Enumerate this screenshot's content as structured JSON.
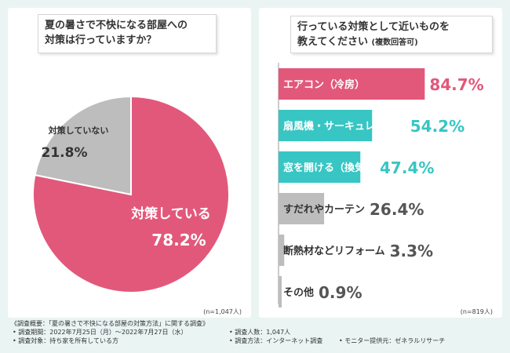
{
  "colors": {
    "background": "#e9f4f3",
    "pink": "#e2587a",
    "teal": "#37c6c3",
    "gray": "#bdbdbd",
    "white": "#ffffff"
  },
  "left_panel": {
    "question_line1": "夏の暑さで不快になる部屋への",
    "question_line2": "対策は行っていますか？",
    "n_label": "(n=1,047人)"
  },
  "right_panel": {
    "question_line1": "行っている対策として近いものを",
    "question_line2": "教えてください",
    "question_note": "(複数回答可)",
    "n_label": "(n=819人)"
  },
  "footer": {
    "survey_overview": "《調査概要：「夏の暑さで不快になる部屋の対策方法」に関する調査》",
    "survey_period": "• 調査期間：2022年7月25日（月）～2022年7月27日（水）",
    "survey_count": "• 調査人数：1,047人",
    "survey_target": "• 調査対象：持ち家を所有している方",
    "survey_method": "• 調査方法：インターネット調査",
    "survey_provider": "• モニター提供元：ゼネラルリサーチ"
  },
  "chart_data": [
    {
      "type": "pie",
      "title": "夏の暑さで不快になる部屋への対策は行っていますか？",
      "slices": [
        {
          "label": "対策している",
          "value": 78.2,
          "display": "78.2%",
          "color": "#e2587a",
          "label_color": "#ffffff"
        },
        {
          "label": "対策していない",
          "value": 21.8,
          "display": "21.8%",
          "color": "#bdbdbd",
          "label_color": "#333333"
        }
      ],
      "n": "(n=1,047人)"
    },
    {
      "type": "bar",
      "orientation": "horizontal",
      "title": "行っている対策として近いものを教えてください (複数回答可)",
      "xlim": [
        0,
        100
      ],
      "categories": [
        "エアコン（冷房）",
        "扇風機・サーキュレーター",
        "窓を開ける（換気）",
        "すだれやカーテン",
        "断熱材などリフォーム",
        "その他"
      ],
      "values": [
        84.7,
        54.2,
        47.4,
        26.4,
        3.3,
        0.9
      ],
      "value_labels": [
        "84.7%",
        "54.2%",
        "47.4%",
        "26.4%",
        "3.3%",
        "0.9%"
      ],
      "bar_colors": [
        "#e2587a",
        "#37c6c3",
        "#37c6c3",
        "#bdbdbd",
        "#bdbdbd",
        "#bdbdbd"
      ],
      "value_colors": [
        "#e2587a",
        "#37c6c3",
        "#37c6c3",
        "#555555",
        "#555555",
        "#555555"
      ],
      "n": "(n=819人)"
    }
  ]
}
